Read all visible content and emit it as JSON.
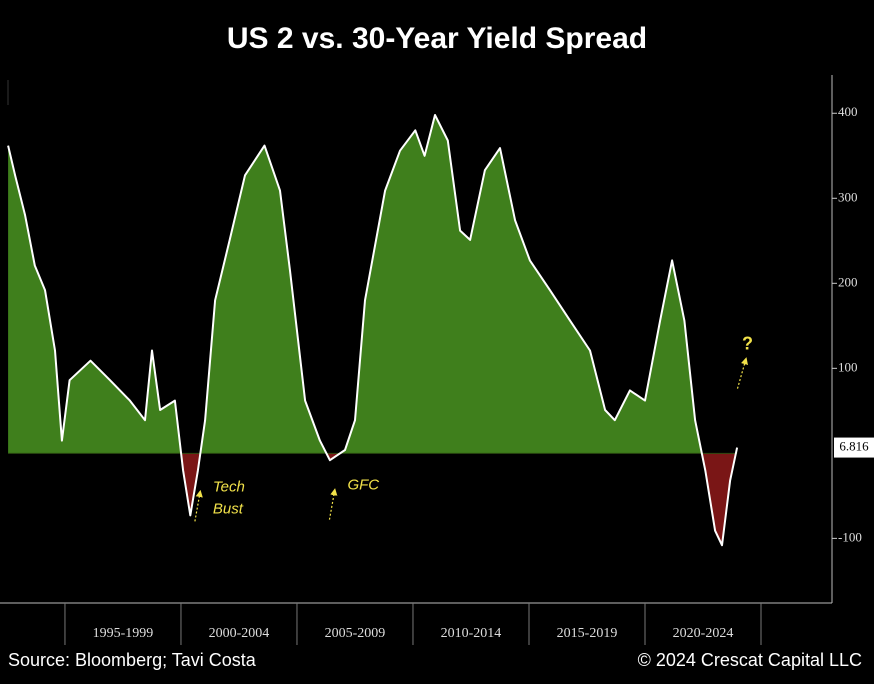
{
  "chart_data": {
    "type": "area",
    "title": "US 2 vs. 30-Year Yield Spread",
    "source": "Source: Bloomberg; Tavi Costa",
    "copyright": "© 2024 Crescat Capital LLC",
    "x": [
      1992.55,
      1992.85,
      1993.28,
      1993.7,
      1994.14,
      1994.57,
      1994.87,
      1995.2,
      1996.1,
      1996.94,
      1997.8,
      1998.45,
      1998.75,
      1999.1,
      1999.74,
      2000.09,
      2000.4,
      2000.73,
      2001.04,
      2001.47,
      2002.1,
      2002.76,
      2003.6,
      2004.27,
      2004.7,
      2005.35,
      2005.99,
      2006.42,
      2007.07,
      2007.5,
      2007.93,
      2008.8,
      2009.44,
      2010.1,
      2010.5,
      2010.95,
      2011.5,
      2012.03,
      2012.46,
      2013.1,
      2013.75,
      2014.4,
      2015.04,
      2015.9,
      2016.77,
      2017.63,
      2018.28,
      2018.7,
      2019.35,
      2020.0,
      2020.65,
      2021.17,
      2021.7,
      2022.16,
      2022.6,
      2023.02,
      2023.32,
      2023.67,
      2023.97
    ],
    "values": [
      362,
      327,
      280,
      221,
      192,
      121,
      15,
      86,
      109,
      86,
      62,
      39,
      121,
      51,
      62,
      -20,
      -73,
      -20,
      39,
      180,
      251,
      327,
      362,
      309,
      215,
      62,
      15,
      -8,
      4,
      39,
      180,
      309,
      356,
      380,
      350,
      398,
      368,
      262,
      251,
      333,
      359,
      274,
      227,
      192,
      156,
      121,
      51,
      39,
      74,
      62,
      156,
      227,
      156,
      39,
      -20,
      -91,
      -108,
      -32,
      6.816
    ],
    "positive_color": "#3f7f1c",
    "negative_color": "#7a1616",
    "line_color": "#ffffff",
    "xlim": [
      1992.2,
      2028.06
    ],
    "xticks": [
      1995,
      2000,
      2005,
      2010,
      2015,
      2020,
      2025
    ],
    "x_periods": [
      "1995-1999",
      "2000-2004",
      "2005-2009",
      "2010-2014",
      "2015-2019",
      "2020-2024"
    ],
    "ylim": [
      -176,
      445
    ],
    "yticks": [
      {
        "value": -100,
        "label": "-100"
      },
      100,
      200,
      300,
      400
    ],
    "last_value_label": "6.816",
    "annotations": [
      {
        "lines": [
          "Tech",
          "Bust"
        ],
        "x": 2000.6,
        "y": -40
      },
      {
        "lines": [
          "GFC"
        ],
        "x": 2006.4,
        "y": -38
      },
      {
        "lines": [
          "?"
        ],
        "x": 2023.9,
        "y": 62
      }
    ]
  }
}
